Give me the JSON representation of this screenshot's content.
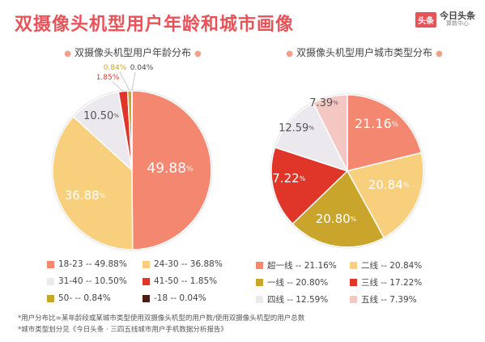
{
  "title": "双摄像头机型用户年龄和城市画像",
  "logo": {
    "badge": "头条",
    "main": "今日头条",
    "sub": "算数中心"
  },
  "footnote1": "*用户分布比=某年龄段或某城市类型使用双摄像头机型的用户数/使用双摄像头机型的用户总数",
  "footnote2": "*城市类型划分见《今日头条 · 三四五线城市用户手机数据分析报告》",
  "colors": {
    "salmon": "#f3876f",
    "gold": "#f7cf7d",
    "lightgray": "#ebe8ee",
    "red": "#e0362a",
    "olive": "#c9a52c",
    "dark": "#4a1e12",
    "pink": "#f5c7c3"
  },
  "chart_data": [
    {
      "type": "pie",
      "title": "双摄像头机型用户年龄分布",
      "unit": "%",
      "slices": [
        {
          "label": "18-23",
          "value": 49.88,
          "display": "49.88",
          "color": "#f3876f"
        },
        {
          "label": "24-30",
          "value": 36.88,
          "display": "36.88",
          "color": "#f7cf7d"
        },
        {
          "label": "31-40",
          "value": 10.5,
          "display": "10.50",
          "color": "#ebe8ee"
        },
        {
          "label": "41-50",
          "value": 1.85,
          "display": "1.85",
          "color": "#e0362a"
        },
        {
          "label": "50-",
          "value": 0.84,
          "display": "0.84",
          "color": "#c9a52c"
        },
        {
          "label": "-18",
          "value": 0.04,
          "display": "0.04",
          "color": "#4a1e12"
        }
      ],
      "legend": [
        {
          "text": "18-23 -- 49.88%",
          "color": "#f3876f",
          "shape": "square"
        },
        {
          "text": "24-30 -- 36.88%",
          "color": "#f7cf7d",
          "shape": "square"
        },
        {
          "text": "31-40 -- 10.50%",
          "color": "#ebe8ee",
          "shape": "square"
        },
        {
          "text": "41-50 -- 1.85%",
          "color": "#e0362a",
          "shape": "square"
        },
        {
          "text": "50-  -- 0.84%",
          "color": "#c9a52c",
          "shape": "square"
        },
        {
          "text": "-18  -- 0.04%",
          "color": "#4a1e12",
          "shape": "square"
        }
      ]
    },
    {
      "type": "pie",
      "title": "双摄像头机型用户城市类型分布",
      "unit": "%",
      "slices": [
        {
          "label": "超一线",
          "value": 21.16,
          "display": "21.16",
          "color": "#f3876f"
        },
        {
          "label": "二线",
          "value": 20.84,
          "display": "20.84",
          "color": "#f7cf7d"
        },
        {
          "label": "一线",
          "value": 20.8,
          "display": "20.80",
          "color": "#c9a52c"
        },
        {
          "label": "三线",
          "value": 17.22,
          "display": "17.22",
          "color": "#e0362a"
        },
        {
          "label": "四线",
          "value": 12.59,
          "display": "12.59",
          "color": "#ebe8ee"
        },
        {
          "label": "五线",
          "value": 7.39,
          "display": "7.39",
          "color": "#f5c7c3"
        }
      ],
      "legend": [
        {
          "text": "超一线 -- 21.16%",
          "color": "#f3876f",
          "shape": "square"
        },
        {
          "text": "二线 -- 20.84%",
          "color": "#f7cf7d",
          "shape": "square"
        },
        {
          "text": "一线   -- 20.80%",
          "color": "#c9a52c",
          "shape": "square"
        },
        {
          "text": "三线 -- 17.22%",
          "color": "#e0362a",
          "shape": "square"
        },
        {
          "text": "四线   -- 12.59%",
          "color": "#ebe8ee",
          "shape": "square"
        },
        {
          "text": "五线 -- 7.39%",
          "color": "#f5c7c3",
          "shape": "square"
        }
      ]
    }
  ]
}
